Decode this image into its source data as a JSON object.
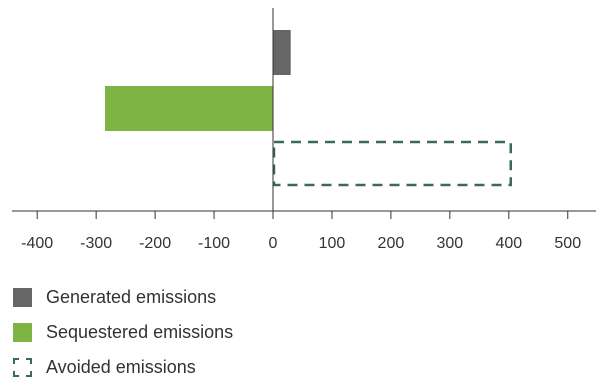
{
  "chart_data": {
    "type": "bar",
    "orientation": "horizontal",
    "categories": [
      "Generated emissions",
      "Sequestered emissions",
      "Avoided emissions"
    ],
    "values": [
      30,
      -285,
      405
    ],
    "xlim": [
      -430,
      550
    ],
    "xticks": [
      -400,
      -300,
      -200,
      -100,
      0,
      100,
      200,
      300,
      400,
      500
    ],
    "grid": false,
    "legend_position": "bottom-left",
    "series_styles": [
      {
        "fill": "#666666",
        "stroke": "none",
        "dashed": false
      },
      {
        "fill": "#7db443",
        "stroke": "none",
        "dashed": false
      },
      {
        "fill": "none",
        "stroke": "#3a6b5a",
        "dashed": true
      }
    ]
  },
  "legend": [
    {
      "label": "Generated emissions"
    },
    {
      "label": "Sequestered emissions"
    },
    {
      "label": "Avoided emissions"
    }
  ]
}
